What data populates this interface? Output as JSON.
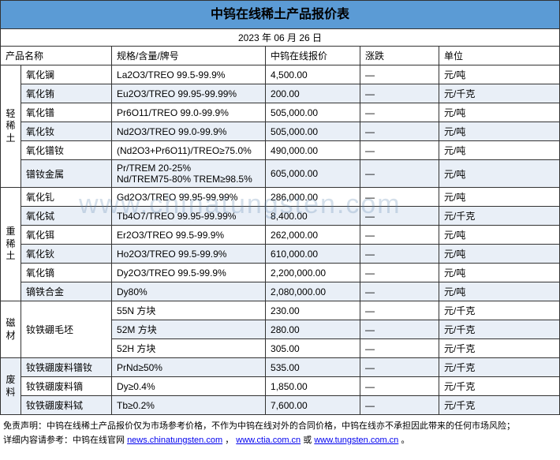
{
  "title": "中钨在线稀土产品报价表",
  "date": "2023 年 06 月 26 日",
  "headers": {
    "name": "产品名称",
    "spec": "规格/含量/牌号",
    "price": "中钨在线报价",
    "change": "涨跌",
    "unit": "单位"
  },
  "watermark": "www.chinatungsten.com",
  "categories": [
    {
      "label": "轻稀土",
      "rows": [
        {
          "name": "氧化镧",
          "spec": "La2O3/TREO 99.5-99.9%",
          "price": "4,500.00",
          "change": "—",
          "unit": "元/吨",
          "cls": "odd"
        },
        {
          "name": "氧化铕",
          "spec": "Eu2O3/TREO 99.95-99.99%",
          "price": "200.00",
          "change": "—",
          "unit": "元/千克",
          "cls": "even"
        },
        {
          "name": "氧化镨",
          "spec": "Pr6O11/TREO 99.0-99.9%",
          "price": "505,000.00",
          "change": "—",
          "unit": "元/吨",
          "cls": "odd"
        },
        {
          "name": "氧化钕",
          "spec": "Nd2O3/TREO 99.0-99.9%",
          "price": "505,000.00",
          "change": "—",
          "unit": "元/吨",
          "cls": "even"
        },
        {
          "name": "氧化镨钕",
          "spec": "(Nd2O3+Pr6O11)/TREO≥75.0%",
          "price": "490,000.00",
          "change": "—",
          "unit": "元/吨",
          "cls": "odd"
        },
        {
          "name": "镨钕金属",
          "spec": "Pr/TREM 20-25%\nNd/TREM75-80% TREM≥98.5%",
          "price": "605,000.00",
          "change": "—",
          "unit": "元/吨",
          "cls": "even",
          "tall": true
        }
      ]
    },
    {
      "label": "重稀土",
      "rows": [
        {
          "name": "氧化钆",
          "spec": "Gd2O3/TREO 99.95-99.99%",
          "price": "286,000.00",
          "change": "—",
          "unit": "元/吨",
          "cls": "odd"
        },
        {
          "name": "氧化铽",
          "spec": "Tb4O7/TREO 99.95-99.99%",
          "price": "8,400.00",
          "change": "—",
          "unit": "元/千克",
          "cls": "even"
        },
        {
          "name": "氧化铒",
          "spec": "Er2O3/TREO 99.5-99.9%",
          "price": "262,000.00",
          "change": "—",
          "unit": "元/吨",
          "cls": "odd"
        },
        {
          "name": "氧化钬",
          "spec": "Ho2O3/TREO 99.5-99.9%",
          "price": "610,000.00",
          "change": "—",
          "unit": "元/吨",
          "cls": "even"
        },
        {
          "name": "氧化镝",
          "spec": "Dy2O3/TREO 99.5-99.9%",
          "price": "2,200,000.00",
          "change": "—",
          "unit": "元/吨",
          "cls": "odd"
        },
        {
          "name": "镝铁合金",
          "spec": "Dy80%",
          "price": "2,080,000.00",
          "change": "—",
          "unit": "元/吨",
          "cls": "even"
        }
      ]
    },
    {
      "label": "磁材",
      "rows": [
        {
          "name": "钕铁硼毛坯",
          "spec": "55N 方块",
          "price": "230.00",
          "change": "—",
          "unit": "元/千克",
          "cls": "odd",
          "namespan": 3
        },
        {
          "spec": "52M 方块",
          "price": "280.00",
          "change": "—",
          "unit": "元/千克",
          "cls": "even"
        },
        {
          "spec": "52H 方块",
          "price": "305.00",
          "change": "—",
          "unit": "元/千克",
          "cls": "odd"
        }
      ]
    },
    {
      "label": "废料",
      "rows": [
        {
          "name": "钕铁硼废料镨钕",
          "spec": "PrNd≥50%",
          "price": "535.00",
          "change": "—",
          "unit": "元/千克",
          "cls": "even"
        },
        {
          "name": "钕铁硼废料镝",
          "spec": "Dy≥0.4%",
          "price": "1,850.00",
          "change": "—",
          "unit": "元/千克",
          "cls": "odd"
        },
        {
          "name": "钕铁硼废料铽",
          "spec": "Tb≥0.2%",
          "price": "7,600.00",
          "change": "—",
          "unit": "元/千克",
          "cls": "even"
        }
      ]
    }
  ],
  "disclaimer": {
    "line1_a": "免责声明：中钨在线稀土产品报价仅为市场参考价格，不作为中钨在线对外的合同价格，中钨在线亦不承担因此带来的任何市场风险；",
    "line2_a": "详细内容请参考：中钨在线官网 ",
    "links": [
      "news.chinatungsten.com",
      "www.ctia.com.cn",
      "www.tungsten.com.cn"
    ],
    "sep1": "，",
    "sep2": " 或 ",
    "tail": "。"
  },
  "colors": {
    "header_bg": "#5b9bd5",
    "row_even": "#e9eff7",
    "row_odd": "#ffffff",
    "border": "#333333",
    "link": "#0000ee"
  }
}
